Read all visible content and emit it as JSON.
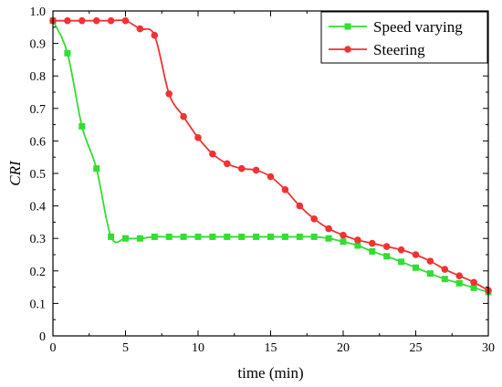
{
  "chart_data": {
    "type": "line",
    "xlabel": "time (min)",
    "ylabel": "CRI",
    "xlim": [
      0,
      30
    ],
    "ylim": [
      0,
      1.0
    ],
    "x_ticks": [
      0,
      5,
      10,
      15,
      20,
      25,
      30
    ],
    "y_ticks": [
      0,
      0.1,
      0.2,
      0.3,
      0.4,
      0.5,
      0.6,
      0.7,
      0.8,
      0.9,
      1.0
    ],
    "x_tick_labels": [
      "0",
      "5",
      "10",
      "15",
      "20",
      "25",
      "30"
    ],
    "y_tick_labels": [
      "0",
      "0.1",
      "0.2",
      "0.3",
      "0.4",
      "0.5",
      "0.6",
      "0.7",
      "0.8",
      "0.9",
      "1.0"
    ],
    "grid": false,
    "legend_position": "top-right",
    "series": [
      {
        "name": "Speed varying",
        "color": "#33dd33",
        "marker": "square",
        "x": [
          0,
          1,
          2,
          3,
          4,
          5,
          6,
          7,
          8,
          9,
          10,
          11,
          12,
          13,
          14,
          15,
          16,
          17,
          18,
          19,
          20,
          21,
          22,
          23,
          24,
          25,
          26,
          27,
          28,
          29,
          30
        ],
        "y": [
          0.97,
          0.87,
          0.645,
          0.515,
          0.305,
          0.3,
          0.3,
          0.305,
          0.305,
          0.305,
          0.305,
          0.305,
          0.305,
          0.305,
          0.305,
          0.305,
          0.305,
          0.305,
          0.305,
          0.3,
          0.29,
          0.278,
          0.26,
          0.245,
          0.228,
          0.21,
          0.192,
          0.175,
          0.162,
          0.148,
          0.135
        ]
      },
      {
        "name": "Steering",
        "color": "#ee3333",
        "marker": "circle",
        "x": [
          0,
          1,
          2,
          3,
          4,
          5,
          6,
          7,
          8,
          9,
          10,
          11,
          12,
          13,
          14,
          15,
          16,
          17,
          18,
          19,
          20,
          21,
          22,
          23,
          24,
          25,
          26,
          27,
          28,
          29,
          30
        ],
        "y": [
          0.97,
          0.97,
          0.97,
          0.97,
          0.97,
          0.97,
          0.945,
          0.925,
          0.745,
          0.675,
          0.61,
          0.56,
          0.53,
          0.515,
          0.51,
          0.49,
          0.45,
          0.4,
          0.36,
          0.33,
          0.31,
          0.295,
          0.285,
          0.275,
          0.265,
          0.25,
          0.23,
          0.205,
          0.185,
          0.165,
          0.14
        ]
      }
    ]
  }
}
